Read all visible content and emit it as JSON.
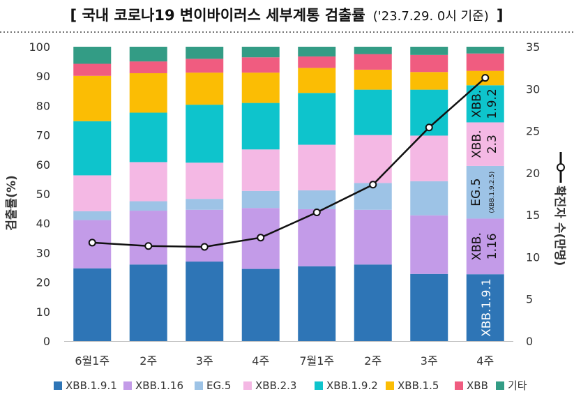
{
  "chart_data": {
    "type": "bar",
    "stacked": true,
    "title": "[ 국내 코로나19 변이바이러스 세부계통 검출률",
    "title_date": "('23.7.29. 0시 기준)",
    "title_close": "]",
    "ylabel": "검출률(%)",
    "y2label": "확진자 수(만명)",
    "ylim": [
      0,
      100
    ],
    "y2lim": [
      0,
      35
    ],
    "yticks": [
      0,
      10,
      20,
      30,
      40,
      50,
      60,
      70,
      80,
      90,
      100
    ],
    "y2ticks": [
      0,
      5,
      10,
      15,
      20,
      25,
      30,
      35
    ],
    "categories": [
      "6월1주",
      "2주",
      "3주",
      "4주",
      "7월1주",
      "2주",
      "3주",
      "4주"
    ],
    "series": [
      {
        "name": "XBB.1.9.1",
        "color": "#2e75b6",
        "values": [
          24.7,
          26.0,
          27.0,
          24.5,
          25.4,
          26.0,
          22.8,
          22.7
        ]
      },
      {
        "name": "XBB.1.16",
        "color": "#c39be8",
        "values": [
          16.4,
          18.3,
          17.6,
          20.7,
          19.4,
          18.6,
          19.9,
          18.9
        ]
      },
      {
        "name": "EG.5",
        "color": "#9dc3e6",
        "values": [
          3.0,
          3.2,
          3.7,
          5.8,
          6.4,
          9.1,
          11.6,
          17.9
        ]
      },
      {
        "name": "XBB.2.3",
        "color": "#f4b8e4",
        "values": [
          12.2,
          13.3,
          12.3,
          14.1,
          15.5,
          16.3,
          15.5,
          14.8
        ]
      },
      {
        "name": "XBB.1.9.2",
        "color": "#0ec4cc",
        "values": [
          18.4,
          16.8,
          19.7,
          15.8,
          17.6,
          15.4,
          15.6,
          12.6
        ]
      },
      {
        "name": "XBB.1.5",
        "color": "#fbbd04",
        "values": [
          15.4,
          13.4,
          10.9,
          10.3,
          8.5,
          6.8,
          6.0,
          4.9
        ]
      },
      {
        "name": "XBB",
        "color": "#f05c80",
        "values": [
          4.1,
          4.0,
          4.7,
          5.2,
          3.9,
          5.3,
          5.8,
          5.9
        ]
      },
      {
        "name": "기타",
        "color": "#339c85",
        "values": [
          5.8,
          5.0,
          4.1,
          3.6,
          3.3,
          2.5,
          2.8,
          2.3
        ]
      }
    ],
    "line": {
      "name": "확진자 수",
      "axis": "y2",
      "values": [
        11.7,
        11.3,
        11.2,
        12.3,
        15.3,
        18.6,
        25.4,
        31.3
      ]
    },
    "bar_labels": {
      "xbb191": "XBB.1.9.1",
      "xbb116_a": "XBB.",
      "xbb116_b": "1.16",
      "eg5_a": "EG.5",
      "eg5_b": "(XBB.1.9.2.5)",
      "xbb23_a": "XBB.",
      "xbb23_b": "2.3",
      "xbb192_a": "XBB.",
      "xbb192_b": "1.9.2"
    }
  }
}
